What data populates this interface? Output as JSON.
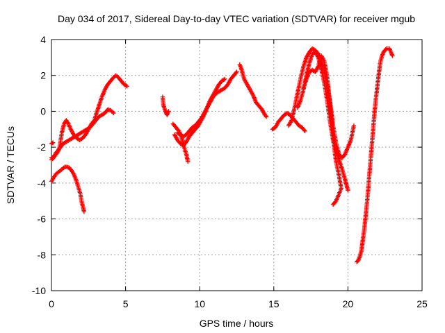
{
  "chart_data": {
    "type": "scatter",
    "title": "Day 034 of 2017, Sidereal Day-to-day VTEC variation (SDTVAR) for receiver mgub",
    "xlabel": "GPS time / hours",
    "ylabel": "SDTVAR / TECUs",
    "xlim": [
      0,
      25
    ],
    "ylim": [
      -10,
      4
    ],
    "xticks": [
      0,
      5,
      10,
      15,
      20,
      25
    ],
    "yticks": [
      -10,
      -8,
      -6,
      -4,
      -2,
      0,
      2,
      4
    ],
    "xtick_labels": [
      "0",
      "5",
      "10",
      "15",
      "20",
      "25"
    ],
    "ytick_labels": [
      "-10",
      "-8",
      "-6",
      "-4",
      "-2",
      "0",
      "2",
      "4"
    ],
    "grid": true,
    "marker": "+",
    "color": "#ff0000",
    "series": [
      {
        "values": [
          [
            0.0,
            -2.6
          ],
          [
            0.2,
            -2.5
          ],
          [
            0.4,
            -2.3
          ],
          [
            0.55,
            -2.0
          ],
          [
            0.7,
            -1.2
          ],
          [
            0.85,
            -0.7
          ],
          [
            1.0,
            -0.5
          ],
          [
            1.15,
            -0.7
          ],
          [
            1.3,
            -1.0
          ],
          [
            1.5,
            -1.3
          ],
          [
            1.7,
            -1.5
          ],
          [
            1.9,
            -1.6
          ],
          [
            2.1,
            -1.5
          ],
          [
            2.3,
            -1.3
          ],
          [
            2.5,
            -1.0
          ],
          [
            2.7,
            -0.7
          ],
          [
            2.9,
            -0.5
          ],
          [
            3.0,
            -0.2
          ],
          [
            3.2,
            0.3
          ],
          [
            3.4,
            0.8
          ],
          [
            3.6,
            1.2
          ],
          [
            3.8,
            1.5
          ],
          [
            4.0,
            1.7
          ],
          [
            4.2,
            1.9
          ],
          [
            4.35,
            2.0
          ],
          [
            4.5,
            1.9
          ],
          [
            4.7,
            1.7
          ],
          [
            4.9,
            1.5
          ],
          [
            5.1,
            1.4
          ]
        ]
      },
      {
        "values": [
          [
            0.0,
            -2.7
          ],
          [
            0.15,
            -2.6
          ],
          [
            0.3,
            -2.3
          ],
          [
            0.45,
            -2.2
          ],
          [
            0.6,
            -2.0
          ],
          [
            0.8,
            -1.8
          ],
          [
            1.0,
            -1.7
          ],
          [
            1.2,
            -1.6
          ],
          [
            1.4,
            -1.5
          ],
          [
            1.6,
            -1.4
          ],
          [
            1.8,
            -1.3
          ],
          [
            2.0,
            -1.2
          ],
          [
            2.2,
            -1.1
          ],
          [
            2.4,
            -1.0
          ],
          [
            2.6,
            -0.9
          ],
          [
            2.8,
            -0.7
          ],
          [
            3.0,
            -0.5
          ],
          [
            3.2,
            -0.3
          ],
          [
            3.4,
            -0.2
          ],
          [
            3.6,
            -0.1
          ],
          [
            3.8,
            0.1
          ],
          [
            4.0,
            0.05
          ],
          [
            4.2,
            -0.1
          ]
        ]
      },
      {
        "values": [
          [
            0.0,
            -3.9
          ],
          [
            0.15,
            -3.7
          ],
          [
            0.3,
            -3.5
          ],
          [
            0.45,
            -3.4
          ],
          [
            0.6,
            -3.3
          ],
          [
            0.75,
            -3.2
          ],
          [
            0.9,
            -3.1
          ],
          [
            1.05,
            -3.1
          ],
          [
            1.2,
            -3.15
          ],
          [
            1.35,
            -3.3
          ],
          [
            1.5,
            -3.5
          ],
          [
            1.65,
            -3.8
          ],
          [
            1.8,
            -4.2
          ],
          [
            1.95,
            -4.6
          ],
          [
            2.05,
            -5.1
          ],
          [
            2.15,
            -5.4
          ],
          [
            2.2,
            -5.6
          ]
        ]
      },
      {
        "values": [
          [
            0.0,
            -1.8
          ],
          [
            0.1,
            -1.75
          ]
        ]
      },
      {
        "values": [
          [
            7.5,
            0.8
          ],
          [
            7.55,
            0.4
          ],
          [
            7.6,
            0.2
          ],
          [
            7.7,
            0.0
          ],
          [
            7.75,
            -0.1
          ],
          [
            7.8,
            -0.2
          ],
          [
            7.9,
            0.0
          ]
        ]
      },
      {
        "values": [
          [
            8.2,
            -0.7
          ],
          [
            8.4,
            -0.9
          ],
          [
            8.6,
            -1.1
          ],
          [
            8.8,
            -1.5
          ],
          [
            8.95,
            -2.0
          ],
          [
            9.1,
            -2.4
          ],
          [
            9.2,
            -2.8
          ]
        ]
      },
      {
        "values": [
          [
            8.3,
            -1.3
          ],
          [
            8.5,
            -1.6
          ],
          [
            8.7,
            -1.8
          ],
          [
            8.9,
            -1.9
          ],
          [
            9.1,
            -1.7
          ],
          [
            9.3,
            -1.4
          ],
          [
            9.5,
            -1.2
          ],
          [
            9.7,
            -1.0
          ],
          [
            9.9,
            -0.8
          ],
          [
            10.1,
            -0.5
          ],
          [
            10.3,
            -0.2
          ],
          [
            10.5,
            0.2
          ],
          [
            10.7,
            0.6
          ],
          [
            10.9,
            0.9
          ],
          [
            11.1,
            1.2
          ],
          [
            11.3,
            1.5
          ],
          [
            11.5,
            1.7
          ],
          [
            11.7,
            1.8
          ]
        ]
      },
      {
        "values": [
          [
            8.5,
            -1.2
          ],
          [
            8.7,
            -1.3
          ],
          [
            8.9,
            -1.4
          ],
          [
            9.1,
            -1.3
          ],
          [
            9.3,
            -1.1
          ],
          [
            9.5,
            -0.9
          ],
          [
            9.7,
            -0.8
          ],
          [
            9.9,
            -0.6
          ],
          [
            10.1,
            -0.4
          ],
          [
            10.3,
            -0.1
          ],
          [
            10.5,
            0.2
          ],
          [
            10.7,
            0.5
          ],
          [
            10.9,
            0.8
          ],
          [
            11.1,
            1.0
          ],
          [
            11.3,
            1.1
          ],
          [
            11.5,
            1.2
          ],
          [
            11.7,
            1.3
          ],
          [
            11.9,
            1.5
          ],
          [
            12.1,
            1.8
          ],
          [
            12.3,
            2.0
          ],
          [
            12.5,
            2.2
          ]
        ]
      },
      {
        "values": [
          [
            12.7,
            2.6
          ],
          [
            12.8,
            2.4
          ],
          [
            12.9,
            2.1
          ],
          [
            13.0,
            1.8
          ],
          [
            13.2,
            1.5
          ],
          [
            13.4,
            1.2
          ],
          [
            13.6,
            0.9
          ],
          [
            13.8,
            0.5
          ],
          [
            14.0,
            0.3
          ],
          [
            14.2,
            0.1
          ],
          [
            14.4,
            -0.2
          ],
          [
            14.5,
            -0.3
          ]
        ]
      },
      {
        "values": [
          [
            14.9,
            -1.0
          ],
          [
            15.1,
            -0.9
          ],
          [
            15.3,
            -0.6
          ],
          [
            15.5,
            -0.4
          ],
          [
            15.7,
            -0.2
          ],
          [
            15.9,
            -0.1
          ],
          [
            16.1,
            -0.2
          ],
          [
            16.3,
            -0.4
          ],
          [
            16.5,
            -0.6
          ],
          [
            16.7,
            -0.8
          ],
          [
            16.9,
            -0.9
          ],
          [
            17.1,
            -1.1
          ]
        ]
      },
      {
        "values": [
          [
            16.0,
            -0.8
          ],
          [
            16.2,
            -0.5
          ],
          [
            16.4,
            0.2
          ],
          [
            16.6,
            1.0
          ],
          [
            16.8,
            1.8
          ],
          [
            17.0,
            2.5
          ],
          [
            17.2,
            3.0
          ],
          [
            17.4,
            3.3
          ],
          [
            17.6,
            3.5
          ],
          [
            17.8,
            3.4
          ],
          [
            18.0,
            3.2
          ],
          [
            18.2,
            2.8
          ],
          [
            18.4,
            2.3
          ],
          [
            18.6,
            1.5
          ],
          [
            18.8,
            0.5
          ],
          [
            19.0,
            -0.8
          ],
          [
            19.2,
            -1.8
          ],
          [
            19.4,
            -2.4
          ],
          [
            19.6,
            -2.6
          ],
          [
            19.8,
            -2.4
          ],
          [
            20.0,
            -2.0
          ],
          [
            20.2,
            -1.6
          ],
          [
            20.4,
            -0.8
          ]
        ]
      },
      {
        "values": [
          [
            16.6,
            0.2
          ],
          [
            16.8,
            0.6
          ],
          [
            17.0,
            1.2
          ],
          [
            17.2,
            2.0
          ],
          [
            17.4,
            2.7
          ],
          [
            17.6,
            3.2
          ],
          [
            17.8,
            3.3
          ],
          [
            18.0,
            3.0
          ],
          [
            18.2,
            2.4
          ],
          [
            18.4,
            1.6
          ],
          [
            18.6,
            0.6
          ],
          [
            18.8,
            -0.6
          ],
          [
            19.0,
            -1.6
          ],
          [
            19.2,
            -2.2
          ],
          [
            19.4,
            -2.7
          ],
          [
            19.6,
            -3.2
          ],
          [
            19.8,
            -3.8
          ],
          [
            20.0,
            -4.4
          ]
        ]
      },
      {
        "values": [
          [
            17.0,
            1.3
          ],
          [
            17.2,
            1.8
          ],
          [
            17.4,
            2.2
          ],
          [
            17.6,
            2.3
          ],
          [
            17.8,
            2.2
          ],
          [
            18.0,
            2.5
          ],
          [
            18.2,
            3.1
          ],
          [
            18.4,
            2.8
          ],
          [
            18.6,
            1.9
          ],
          [
            18.8,
            0.3
          ],
          [
            19.0,
            -1.5
          ],
          [
            19.2,
            -2.8
          ],
          [
            19.4,
            -3.6
          ],
          [
            19.55,
            -4.3
          ],
          [
            19.2,
            -5.0
          ],
          [
            19.0,
            -5.2
          ]
        ]
      },
      {
        "values": [
          [
            20.6,
            -8.4
          ],
          [
            20.7,
            -8.3
          ],
          [
            20.8,
            -8.1
          ],
          [
            20.9,
            -7.8
          ],
          [
            21.0,
            -7.2
          ],
          [
            21.1,
            -6.6
          ],
          [
            21.2,
            -5.8
          ],
          [
            21.3,
            -5.0
          ],
          [
            21.4,
            -4.0
          ],
          [
            21.5,
            -3.0
          ],
          [
            21.6,
            -2.0
          ],
          [
            21.7,
            -1.0
          ],
          [
            21.8,
            0.0
          ],
          [
            21.9,
            0.8
          ],
          [
            22.0,
            1.5
          ],
          [
            22.1,
            2.2
          ],
          [
            22.2,
            2.8
          ],
          [
            22.3,
            3.1
          ],
          [
            22.4,
            3.3
          ],
          [
            22.6,
            3.5
          ],
          [
            22.8,
            3.5
          ],
          [
            22.9,
            3.3
          ],
          [
            23.0,
            3.1
          ]
        ]
      }
    ]
  }
}
